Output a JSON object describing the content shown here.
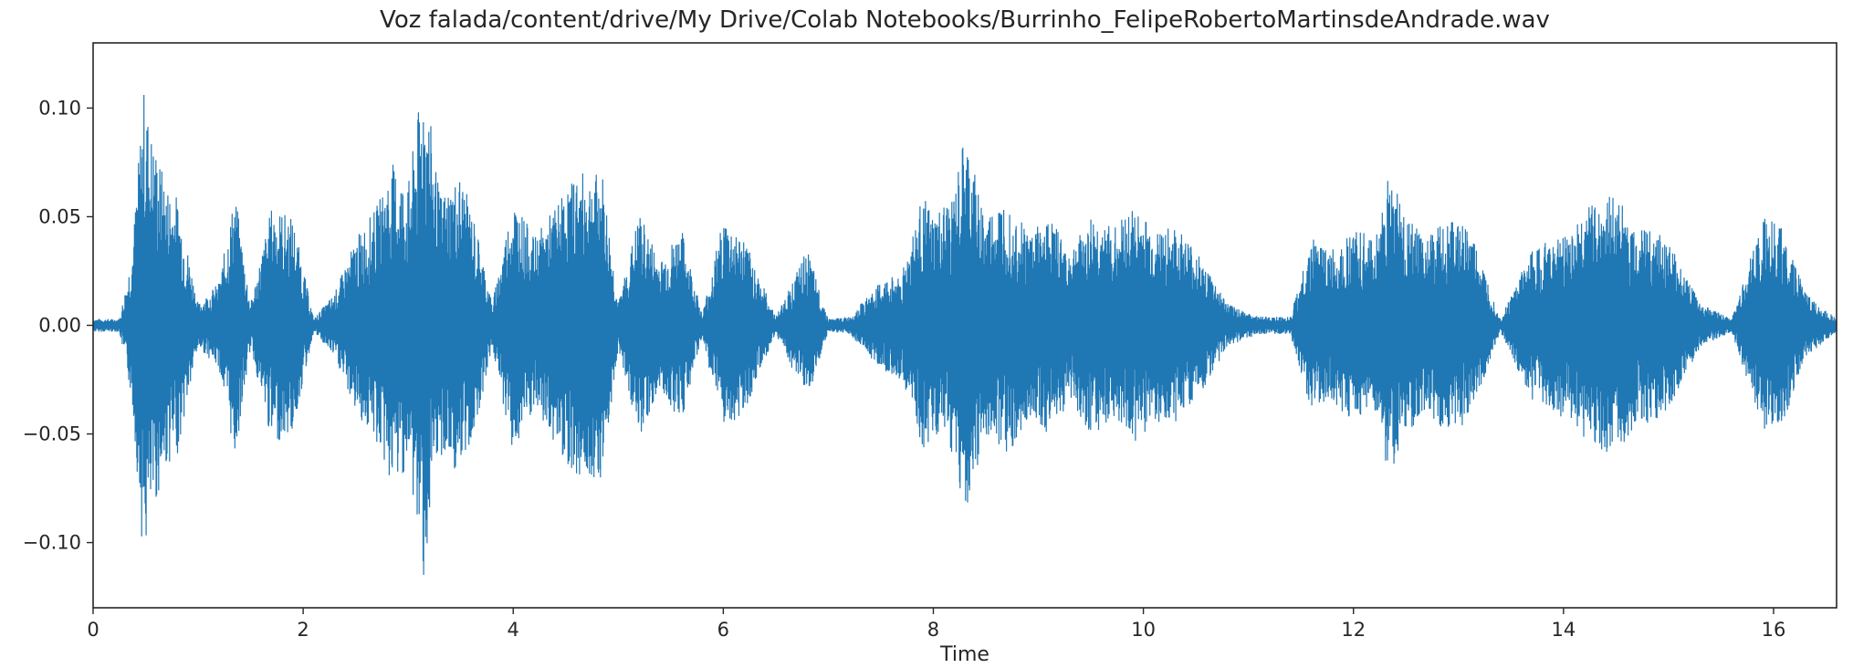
{
  "chart_data": {
    "type": "line",
    "title": "Voz falada/content/drive/My Drive/Colab Notebooks/Burrinho_FelipeRobertoMartinsdeAndrade.wav",
    "xlabel": "Time",
    "ylabel": "",
    "xlim": [
      0,
      16.6
    ],
    "ylim": [
      -0.13,
      0.13
    ],
    "xticks": [
      0,
      2,
      4,
      6,
      8,
      10,
      12,
      14,
      16
    ],
    "xtick_labels": [
      "0",
      "2",
      "4",
      "6",
      "8",
      "10",
      "12",
      "14",
      "16"
    ],
    "yticks": [
      0.1,
      0.05,
      0.0,
      -0.05,
      -0.1
    ],
    "ytick_labels": [
      "0.10",
      "0.05",
      "0.00",
      "−0.05",
      "−0.10"
    ],
    "grid": false,
    "legend": "none",
    "color": "#1f77b4",
    "series": [
      {
        "envelope_time": [
          0,
          0.25,
          0.32,
          0.38,
          0.48,
          0.55,
          0.7,
          0.8,
          1.0,
          1.2,
          1.35,
          1.5,
          1.7,
          1.9,
          2.1,
          2.3,
          2.5,
          2.7,
          2.85,
          3.0,
          3.15,
          3.3,
          3.5,
          3.65,
          3.8,
          4.0,
          4.2,
          4.4,
          4.6,
          4.85,
          5.0,
          5.2,
          5.4,
          5.6,
          5.8,
          6.0,
          6.2,
          6.5,
          6.8,
          7.0,
          7.2,
          7.5,
          7.7,
          7.9,
          8.0,
          8.2,
          8.3,
          8.5,
          8.7,
          8.9,
          9.1,
          9.3,
          9.5,
          9.7,
          9.9,
          10.1,
          10.3,
          10.5,
          10.8,
          11.1,
          11.4,
          11.6,
          11.8,
          12.0,
          12.2,
          12.35,
          12.5,
          12.7,
          12.9,
          13.1,
          13.4,
          13.7,
          13.9,
          14.1,
          14.3,
          14.5,
          14.7,
          14.9,
          15.1,
          15.3,
          15.6,
          15.9,
          16.1,
          16.3,
          16.6
        ],
        "envelope_amplitude": [
          0.003,
          0.003,
          0.02,
          0.04,
          0.11,
          0.09,
          0.065,
          0.06,
          0.01,
          0.02,
          0.062,
          0.01,
          0.055,
          0.05,
          0.003,
          0.015,
          0.04,
          0.055,
          0.075,
          0.065,
          0.117,
          0.06,
          0.07,
          0.045,
          0.01,
          0.06,
          0.04,
          0.055,
          0.07,
          0.07,
          0.01,
          0.052,
          0.03,
          0.045,
          0.005,
          0.05,
          0.04,
          0.004,
          0.035,
          0.003,
          0.004,
          0.02,
          0.025,
          0.06,
          0.05,
          0.06,
          0.088,
          0.05,
          0.06,
          0.045,
          0.05,
          0.035,
          0.05,
          0.045,
          0.055,
          0.045,
          0.045,
          0.035,
          0.01,
          0.004,
          0.004,
          0.04,
          0.035,
          0.045,
          0.04,
          0.072,
          0.05,
          0.04,
          0.05,
          0.045,
          0.003,
          0.035,
          0.04,
          0.045,
          0.06,
          0.06,
          0.045,
          0.045,
          0.03,
          0.01,
          0.003,
          0.05,
          0.045,
          0.015,
          0.003
        ]
      }
    ]
  }
}
